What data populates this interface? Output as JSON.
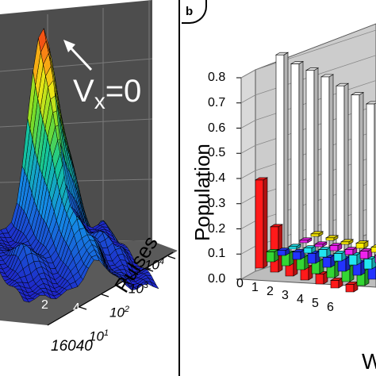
{
  "panel_a": {
    "annotation_v": "V",
    "annotation_sub": "x",
    "annotation_rest": "=0",
    "y_axis_label": "Pulses",
    "y_ticks": [
      {
        "base": "10",
        "exp": "1"
      },
      {
        "base": "10",
        "exp": "2"
      },
      {
        "base": "10",
        "exp": "3"
      },
      {
        "base": "10",
        "exp": "4"
      }
    ],
    "x_ticks": [
      "2",
      "4"
    ],
    "x_corner": "16040"
  },
  "panel_b": {
    "tag": "b",
    "ylabel": "Population",
    "xlabel_fragment": "W",
    "colors": {
      "white": "#ffffff",
      "red": "#ff1a1a",
      "green": "#33d633",
      "blue": "#2233ff",
      "cyan": "#22e6f0",
      "magenta": "#ee22ee",
      "yellow": "#ffee00"
    }
  },
  "chart_data": {
    "type": "bar",
    "yticks": [
      "0.0",
      "0.1",
      "0.2",
      "0.3",
      "0.4",
      "0.5",
      "0.6",
      "0.7",
      "0.8"
    ],
    "ylim": [
      0,
      0.8
    ],
    "categories": [
      "0",
      "1",
      "2",
      "3",
      "4",
      "5",
      "6"
    ],
    "xlabel": "W",
    "ylabel": "Population",
    "series": [
      {
        "color_key": "white",
        "values": [
          0.79,
          0.77,
          0.76,
          0.75,
          0.73,
          0.71,
          0.69
        ]
      },
      {
        "color_key": "red",
        "values": [
          0.35,
          0.18,
          0.09,
          0.05,
          0.04,
          0.03,
          0.03
        ]
      },
      {
        "color_key": "green",
        "values": [
          0.04,
          0.05,
          0.05,
          0.05,
          0.06,
          0.06,
          0.06
        ]
      },
      {
        "color_key": "blue",
        "values": [
          0.02,
          0.03,
          0.04,
          0.04,
          0.05,
          0.05,
          0.05
        ]
      },
      {
        "color_key": "cyan",
        "values": [
          0.01,
          0.02,
          0.03,
          0.03,
          0.04,
          0.04,
          0.04
        ]
      },
      {
        "color_key": "magenta",
        "values": [
          0.01,
          0.01,
          0.02,
          0.02,
          0.03,
          0.03,
          0.03
        ]
      },
      {
        "color_key": "yellow",
        "values": [
          0.01,
          0.01,
          0.01,
          0.02,
          0.02,
          0.02,
          0.03
        ]
      }
    ]
  }
}
